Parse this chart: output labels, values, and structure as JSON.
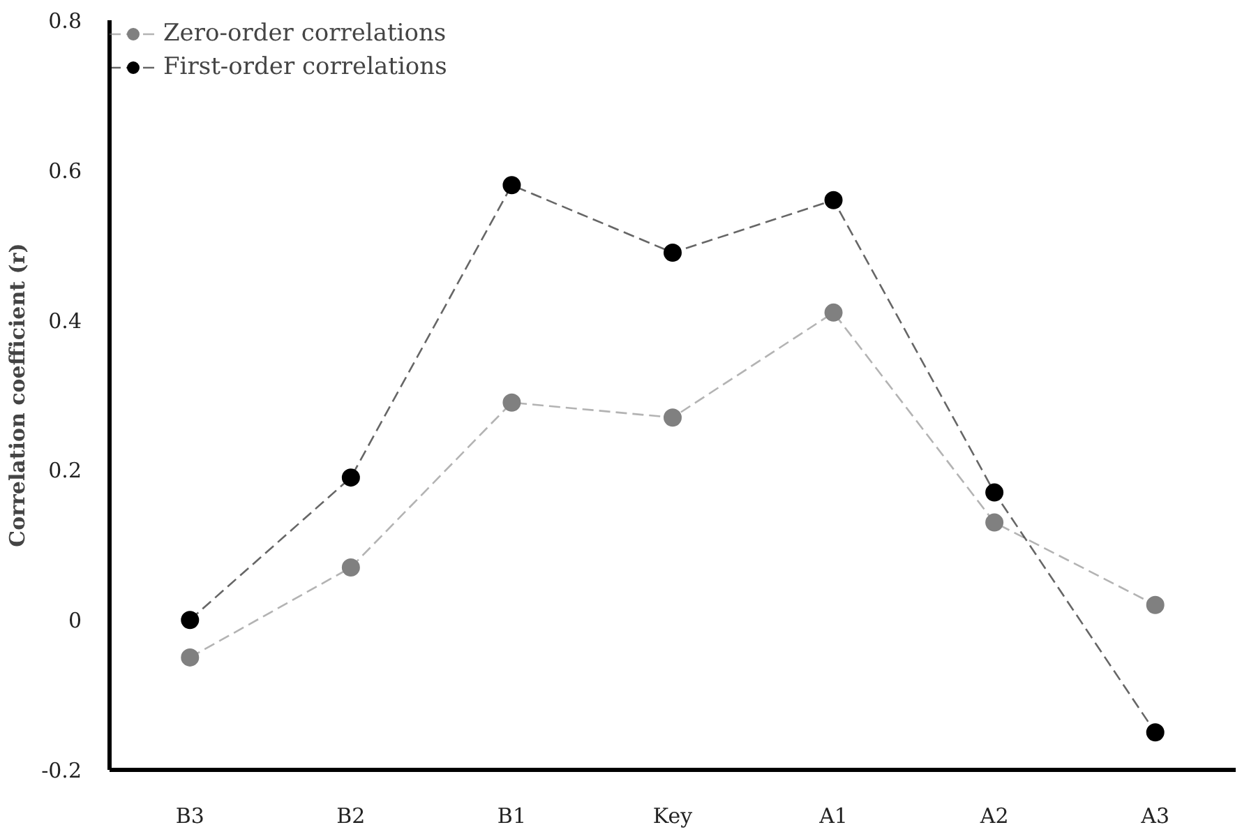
{
  "chart_data": {
    "type": "line",
    "ylabel": "Correlation coefficient (r)",
    "categories": [
      "B3",
      "B2",
      "B1",
      "Key",
      "A1",
      "A2",
      "A3"
    ],
    "series": [
      {
        "name": "Zero-order correlations",
        "color": "#808080",
        "values": [
          -0.05,
          0.07,
          0.29,
          0.27,
          0.41,
          0.13,
          0.02
        ]
      },
      {
        "name": "First-order correlations",
        "color": "#000000",
        "values": [
          0.0,
          0.19,
          0.58,
          0.49,
          0.56,
          0.17,
          -0.15
        ]
      }
    ],
    "ylim": [
      -0.2,
      0.8
    ],
    "yticks": [
      {
        "value": -0.2,
        "label": "-0.2"
      },
      0,
      {
        "value": 0.2,
        "label": "0.2"
      },
      {
        "value": 0.4,
        "label": "0.4"
      },
      {
        "value": 0.6,
        "label": "0.6"
      },
      {
        "value": 0.8,
        "label": "0.8"
      }
    ],
    "grid": false,
    "legend": "top left",
    "marker": "circle",
    "line_style": "dashed"
  }
}
